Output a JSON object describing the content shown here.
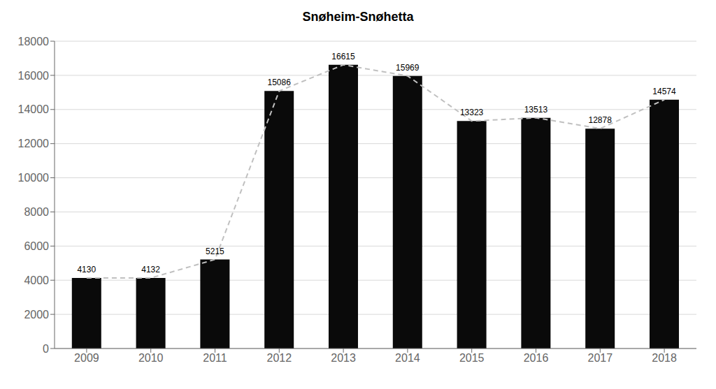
{
  "chart_data": {
    "type": "bar",
    "title": "Snøheim-Snøhetta",
    "categories": [
      "2009",
      "2010",
      "2011",
      "2012",
      "2013",
      "2014",
      "2015",
      "2016",
      "2017",
      "2018"
    ],
    "series": [
      {
        "type": "bar",
        "color": "#0a0a0a",
        "values": [
          4130,
          4132,
          5215,
          15086,
          16615,
          15969,
          13323,
          13513,
          12878,
          14574
        ]
      },
      {
        "type": "line",
        "color": "#c0c0c0",
        "line_style": "dashed",
        "values": [
          4130,
          4132,
          5215,
          15086,
          16615,
          15969,
          13323,
          13513,
          12878,
          14574
        ]
      }
    ],
    "ylim": [
      0,
      18000
    ],
    "yticks": [
      0,
      2000,
      4000,
      6000,
      8000,
      10000,
      12000,
      14000,
      16000,
      18000
    ],
    "grid": true,
    "data_labels": true
  }
}
